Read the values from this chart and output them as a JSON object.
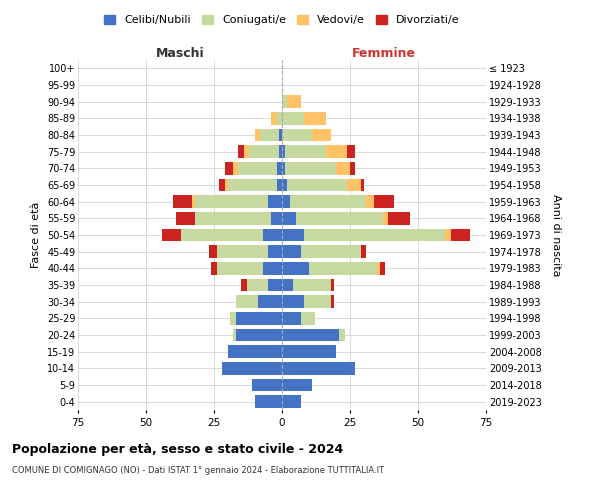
{
  "age_groups": [
    "100+",
    "95-99",
    "90-94",
    "85-89",
    "80-84",
    "75-79",
    "70-74",
    "65-69",
    "60-64",
    "55-59",
    "50-54",
    "45-49",
    "40-44",
    "35-39",
    "30-34",
    "25-29",
    "20-24",
    "15-19",
    "10-14",
    "5-9",
    "0-4"
  ],
  "birth_years": [
    "≤ 1923",
    "1924-1928",
    "1929-1933",
    "1934-1938",
    "1939-1943",
    "1944-1948",
    "1949-1953",
    "1954-1958",
    "1959-1963",
    "1964-1968",
    "1969-1973",
    "1974-1978",
    "1979-1983",
    "1984-1988",
    "1989-1993",
    "1994-1998",
    "1999-2003",
    "2004-2008",
    "2009-2013",
    "2014-2018",
    "2019-2023"
  ],
  "colors": {
    "celibi": "#4472c4",
    "coniugati": "#c5d9a0",
    "vedovi": "#ffc266",
    "divorziati": "#cc2222"
  },
  "maschi": {
    "celibi": [
      0,
      0,
      0,
      0,
      1,
      1,
      2,
      2,
      5,
      4,
      7,
      5,
      7,
      5,
      9,
      17,
      17,
      20,
      22,
      11,
      10
    ],
    "coniugati": [
      0,
      0,
      0,
      2,
      7,
      11,
      14,
      18,
      27,
      28,
      30,
      19,
      17,
      8,
      8,
      2,
      1,
      0,
      0,
      0,
      0
    ],
    "vedovi": [
      0,
      0,
      0,
      2,
      2,
      2,
      2,
      1,
      1,
      0,
      0,
      0,
      0,
      0,
      0,
      0,
      0,
      0,
      0,
      0,
      0
    ],
    "divorziati": [
      0,
      0,
      0,
      0,
      0,
      2,
      3,
      2,
      7,
      7,
      7,
      3,
      2,
      2,
      0,
      0,
      0,
      0,
      0,
      0,
      0
    ]
  },
  "femmine": {
    "celibi": [
      0,
      0,
      0,
      0,
      0,
      1,
      1,
      2,
      3,
      5,
      8,
      7,
      10,
      4,
      8,
      7,
      21,
      20,
      27,
      11,
      7
    ],
    "coniugati": [
      0,
      0,
      2,
      8,
      11,
      15,
      19,
      22,
      28,
      32,
      52,
      22,
      25,
      14,
      10,
      5,
      2,
      0,
      0,
      0,
      0
    ],
    "vedovi": [
      0,
      0,
      5,
      8,
      7,
      8,
      5,
      5,
      3,
      2,
      2,
      0,
      1,
      0,
      0,
      0,
      0,
      0,
      0,
      0,
      0
    ],
    "divorziati": [
      0,
      0,
      0,
      0,
      0,
      3,
      2,
      1,
      7,
      8,
      7,
      2,
      2,
      1,
      1,
      0,
      0,
      0,
      0,
      0,
      0
    ]
  },
  "xlim": 75,
  "title_main": "Popolazione per età, sesso e stato civile - 2024",
  "title_sub": "COMUNE DI COMIGNAGO (NO) - Dati ISTAT 1° gennaio 2024 - Elaborazione TUTTITALIA.IT",
  "legend_labels": [
    "Celibi/Nubili",
    "Coniugati/e",
    "Vedovi/e",
    "Divorziati/e"
  ],
  "xlabel_left": "Maschi",
  "xlabel_right": "Femmine",
  "ylabel_left": "Fasce di età",
  "ylabel_right": "Anni di nascita",
  "bg_color": "#ffffff",
  "grid_color": "#cccccc"
}
